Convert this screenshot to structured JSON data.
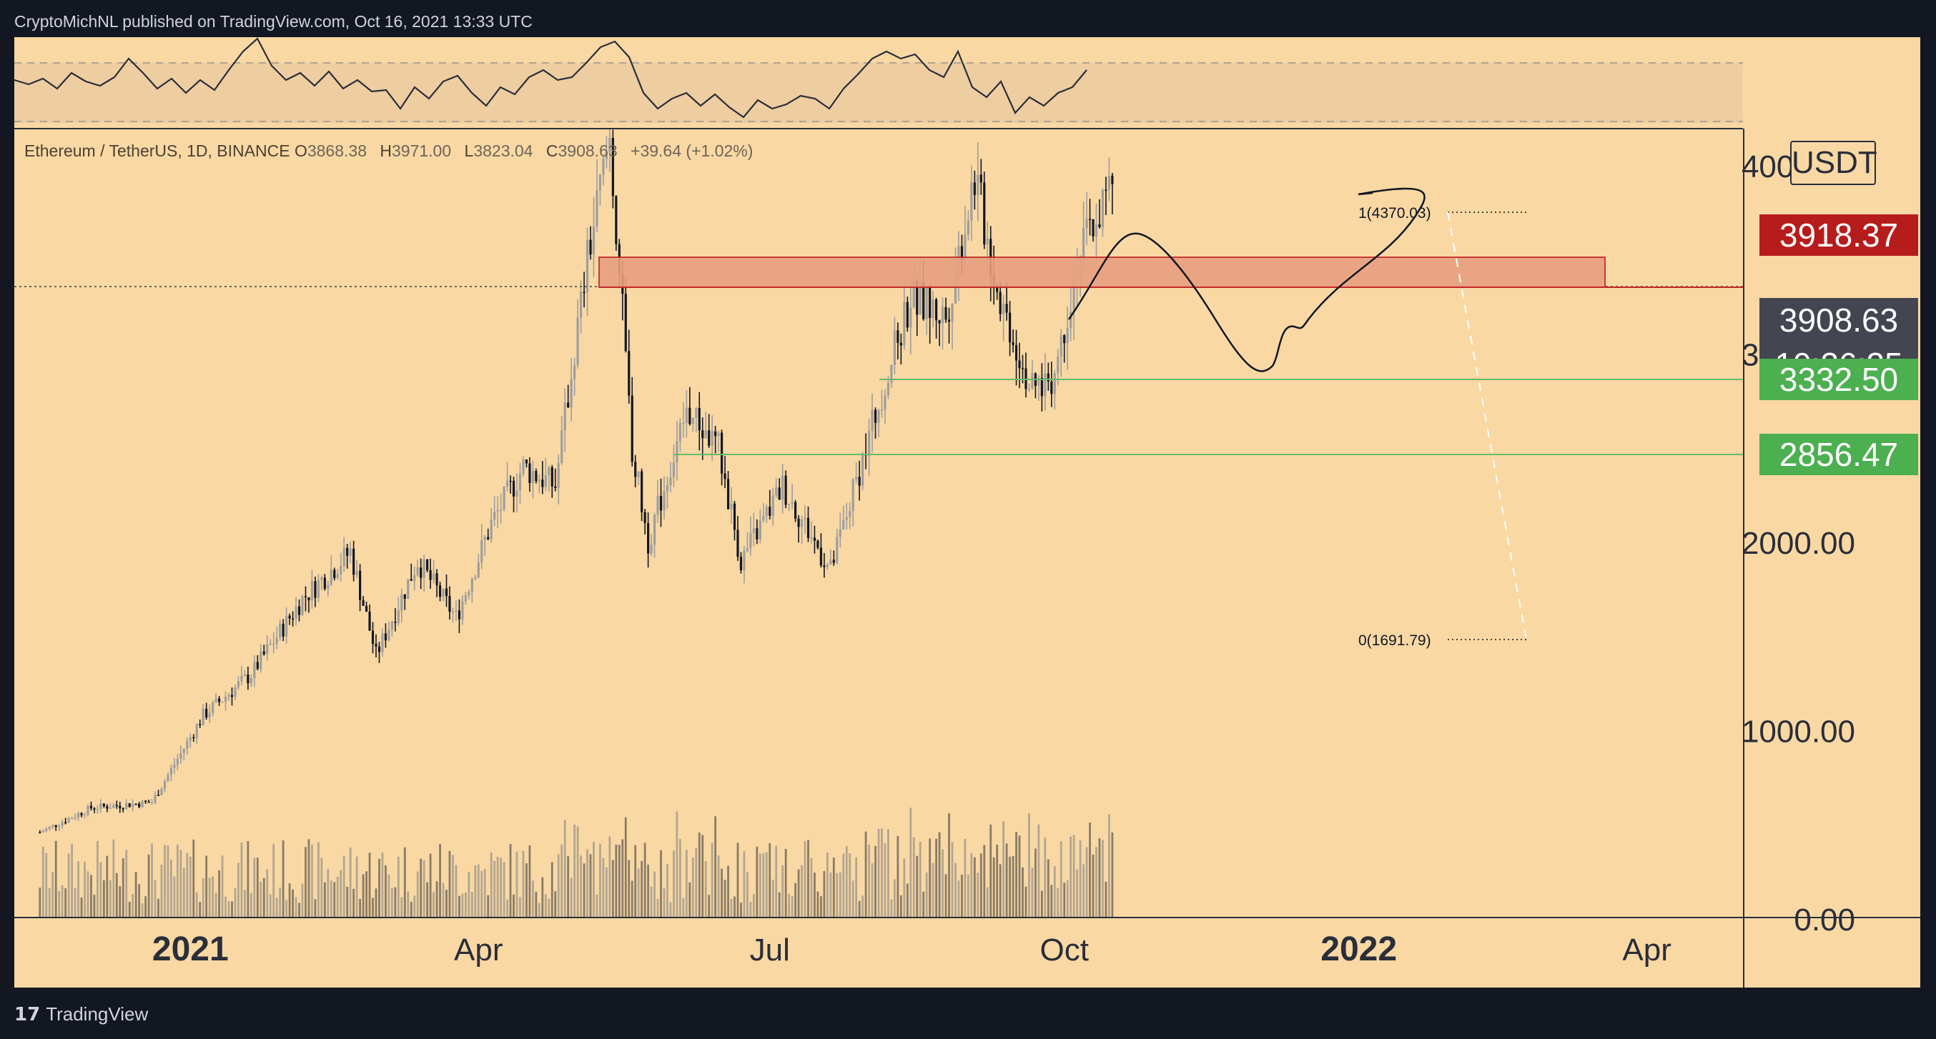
{
  "header": {
    "published_text": "CryptoMichNL published on TradingView.com, Oct 16, 2021 13:33 UTC"
  },
  "legend": {
    "pair": "Ethereum / TetherUS, 1D, BINANCE",
    "open_label": "O",
    "open_value": "3868.38",
    "high_label": "H",
    "high_value": "3971.00",
    "low_label": "L",
    "low_value": "3823.04",
    "close_label": "C",
    "close_value": "3908.63",
    "change": "+39.64 (+1.02%)"
  },
  "price_axis": {
    "unit": "USDT",
    "ticks": [
      "4000.00",
      "3000.00",
      "2000.00",
      "1000.00",
      "0.00"
    ],
    "tags": {
      "resistance": "3918.37",
      "last_price": "3908.63",
      "countdown": "10:26:25",
      "support_1": "3332.50",
      "support_2": "2856.47"
    }
  },
  "time_axis": {
    "labels": [
      "2021",
      "Apr",
      "Jul",
      "Oct",
      "2022",
      "Apr"
    ]
  },
  "fib": {
    "level_1": "1(4370.03)",
    "level_0": "0(1691.79)"
  },
  "footer": {
    "brand": "TradingView",
    "logo": "𝟭𝟳"
  },
  "colors": {
    "background": "#f9d8a4",
    "frame": "#131722",
    "resistance_zone": "#e8a080",
    "resistance_tag": "#b71c1c",
    "support_tag": "#4caf50",
    "support_line": "#66bb6a"
  },
  "chart_data": {
    "type": "candlestick",
    "symbol": "Ethereum / TetherUS",
    "interval": "1D",
    "exchange": "BINANCE",
    "ohlc_last": {
      "open": 3868.38,
      "high": 3971.0,
      "low": 3823.04,
      "close": 3908.63,
      "change": 39.64,
      "change_pct": 1.02
    },
    "price_path": [
      [
        "2020-11-15",
        460
      ],
      [
        "2020-12-01",
        590
      ],
      [
        "2020-12-20",
        620
      ],
      [
        "2021-01-05",
        1080
      ],
      [
        "2021-01-20",
        1300
      ],
      [
        "2021-02-05",
        1700
      ],
      [
        "2021-02-20",
        1950
      ],
      [
        "2021-02-28",
        1400
      ],
      [
        "2021-03-13",
        1900
      ],
      [
        "2021-03-25",
        1600
      ],
      [
        "2021-04-05",
        2100
      ],
      [
        "2021-04-15",
        2400
      ],
      [
        "2021-04-25",
        2300
      ],
      [
        "2021-05-05",
        3500
      ],
      [
        "2021-05-12",
        4150
      ],
      [
        "2021-05-19",
        2500
      ],
      [
        "2021-05-24",
        2000
      ],
      [
        "2021-06-05",
        2700
      ],
      [
        "2021-06-15",
        2500
      ],
      [
        "2021-06-22",
        1900
      ],
      [
        "2021-07-05",
        2300
      ],
      [
        "2021-07-20",
        1850
      ],
      [
        "2021-08-05",
        2800
      ],
      [
        "2021-08-14",
        3300
      ],
      [
        "2021-08-25",
        3200
      ],
      [
        "2021-09-03",
        3950
      ],
      [
        "2021-09-10",
        3350
      ],
      [
        "2021-09-21",
        2800
      ],
      [
        "2021-09-28",
        2900
      ],
      [
        "2021-10-05",
        3500
      ],
      [
        "2021-10-16",
        3908.63
      ]
    ],
    "resistance_zone": {
      "from": 3918.37,
      "to": 4120
    },
    "support_levels": [
      3332.5,
      2856.47
    ],
    "fibonacci": {
      "level_1": 4370.03,
      "level_0": 1691.79
    },
    "projection_path": [
      [
        "2021-10-16",
        3908.63
      ],
      [
        "2021-11-10",
        4420
      ],
      [
        "2021-12-20",
        3300
      ],
      [
        "2022-01-10",
        3550
      ],
      [
        "2022-02-05",
        4450
      ]
    ],
    "y_axis": {
      "ticks": [
        0,
        1000,
        2000,
        3000,
        4000
      ],
      "unit": "USDT"
    },
    "x_axis": {
      "labels": [
        "2021",
        "Apr",
        "Jul",
        "Oct",
        "2022",
        "Apr"
      ]
    },
    "indicator_panel": "oscillator with dashed bands",
    "volume": "histogram bars below price"
  }
}
